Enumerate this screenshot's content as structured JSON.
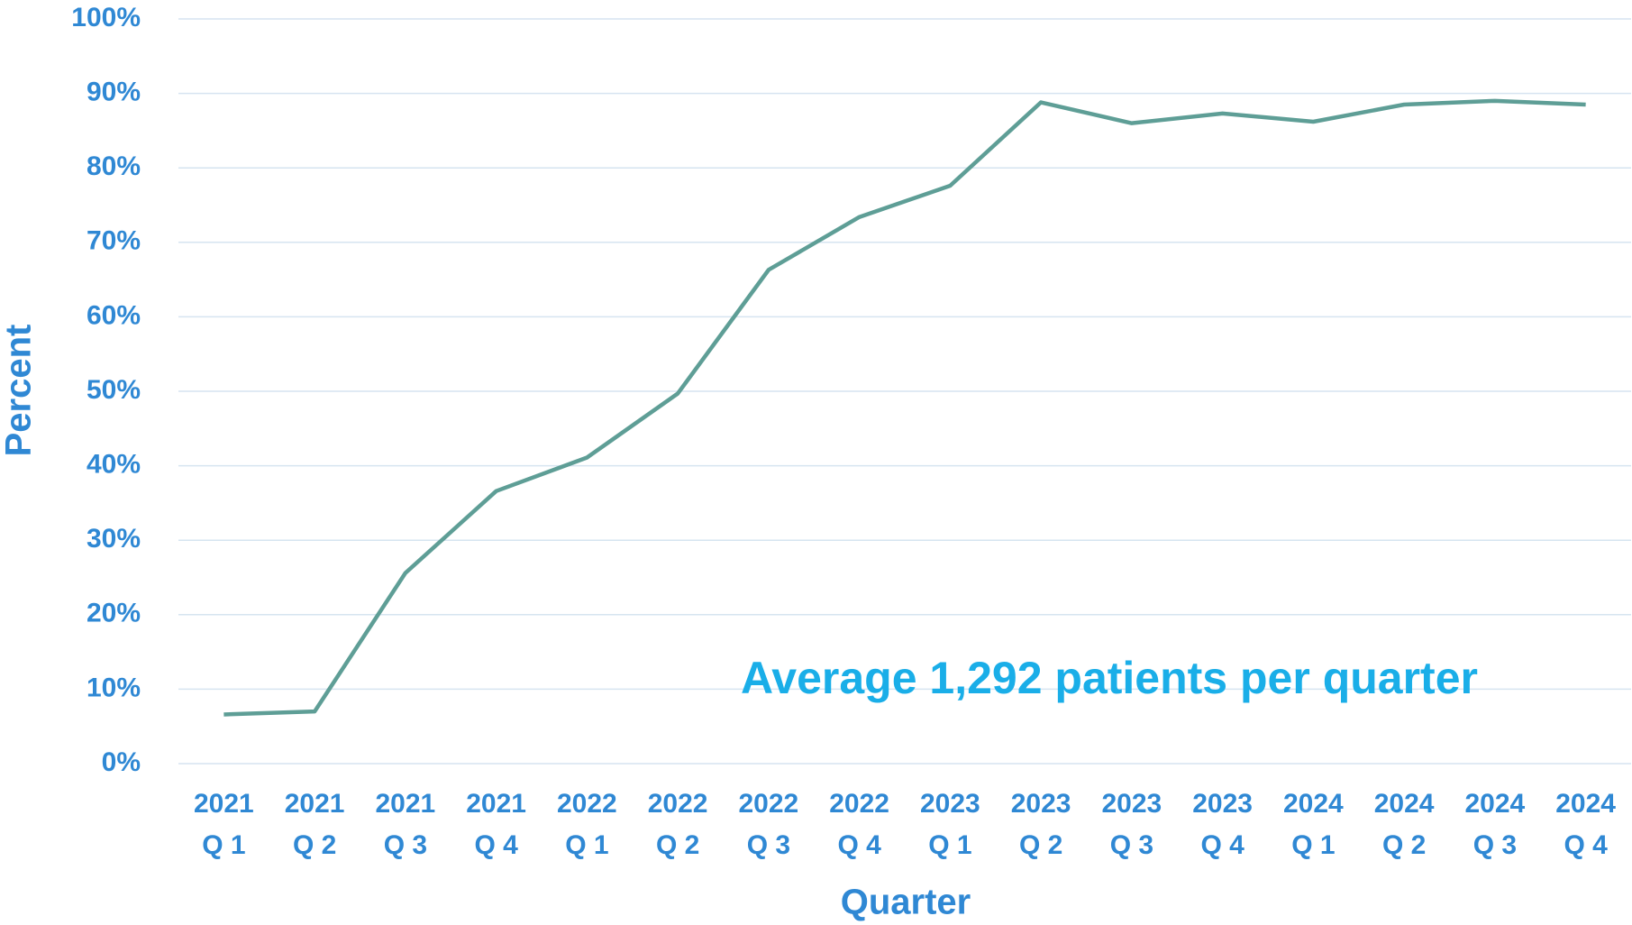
{
  "chart_data": {
    "type": "line",
    "x_label": "Quarter",
    "y_label": "Percent",
    "annotation": "Average 1,292 patients per quarter",
    "categories": [
      [
        "2021",
        "Q 1"
      ],
      [
        "2021",
        "Q 2"
      ],
      [
        "2021",
        "Q 3"
      ],
      [
        "2021",
        "Q 4"
      ],
      [
        "2022",
        "Q 1"
      ],
      [
        "2022",
        "Q 2"
      ],
      [
        "2022",
        "Q 3"
      ],
      [
        "2022",
        "Q 4"
      ],
      [
        "2023",
        "Q 1"
      ],
      [
        "2023",
        "Q 2"
      ],
      [
        "2023",
        "Q 3"
      ],
      [
        "2023",
        "Q 4"
      ],
      [
        "2024",
        "Q 1"
      ],
      [
        "2024",
        "Q 2"
      ],
      [
        "2024",
        "Q 3"
      ],
      [
        "2024",
        "Q 4"
      ]
    ],
    "values": [
      6.6,
      7.0,
      25.6,
      36.6,
      41.1,
      49.7,
      66.3,
      73.4,
      77.6,
      88.8,
      86.0,
      87.3,
      86.2,
      88.5,
      89.0,
      88.5
    ],
    "color": "#5e9e96",
    "ylim": [
      0,
      100
    ],
    "yticks": [
      {
        "value": 0,
        "label": "0%"
      },
      {
        "value": 10,
        "label": "10%"
      },
      {
        "value": 20,
        "label": "20%"
      },
      {
        "value": 30,
        "label": "30%"
      },
      {
        "value": 40,
        "label": "40%"
      },
      {
        "value": 50,
        "label": "50%"
      },
      {
        "value": 60,
        "label": "60%"
      },
      {
        "value": 70,
        "label": "70%"
      },
      {
        "value": 80,
        "label": "80%"
      },
      {
        "value": 90,
        "label": "90%"
      },
      {
        "value": 100,
        "label": "100%"
      }
    ],
    "grid": true
  }
}
